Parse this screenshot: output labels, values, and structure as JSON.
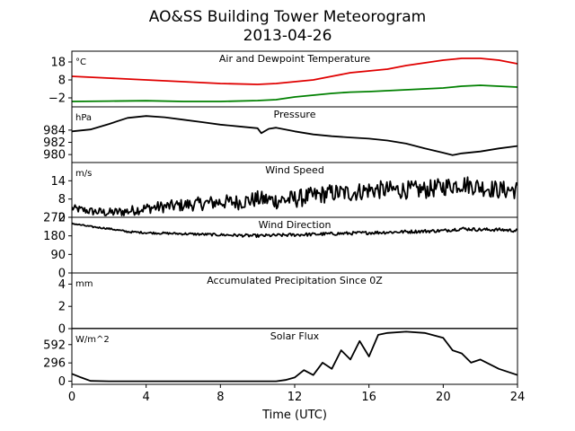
{
  "figure": {
    "title": "AO&SS Building Tower Meteorogram",
    "subtitle": "2013-04-26"
  },
  "chart_data": [
    {
      "type": "line",
      "title": "Air and Dewpoint Temperature",
      "unit_label": "°C",
      "xlabel": "Time (UTC)",
      "xlim": [
        0,
        24
      ],
      "ylim": [
        -7,
        24
      ],
      "yticks": [
        -2,
        8,
        18
      ],
      "ytick_labels": [
        "−2",
        "8",
        "18"
      ],
      "series": [
        {
          "color": "#e00000",
          "x": [
            0,
            2,
            4,
            6,
            8,
            10,
            11,
            12,
            13,
            14,
            15,
            16,
            17,
            18,
            19,
            20,
            21,
            22,
            23,
            24
          ],
          "y": [
            10,
            9,
            8,
            7,
            6,
            5.5,
            6,
            7,
            8,
            10,
            12,
            13,
            14,
            16,
            17.5,
            19,
            20,
            20,
            19,
            17
          ]
        },
        {
          "color": "#008000",
          "x": [
            0,
            2,
            4,
            6,
            8,
            10,
            11,
            12,
            13,
            14,
            15,
            16,
            17,
            18,
            19,
            20,
            21,
            22,
            23,
            24
          ],
          "y": [
            -4,
            -3.8,
            -3.6,
            -4,
            -4,
            -3.5,
            -3,
            -1.5,
            -0.5,
            0.5,
            1.2,
            1.5,
            2,
            2.5,
            3,
            3.5,
            4.5,
            5,
            4.5,
            4
          ]
        }
      ]
    },
    {
      "type": "line",
      "title": "Pressure",
      "unit_label": "hPa",
      "xlim": [
        0,
        24
      ],
      "ylim": [
        978.7,
        987.8
      ],
      "yticks": [
        980,
        982,
        984
      ],
      "ytick_labels": [
        "980",
        "982",
        "984"
      ],
      "series": [
        {
          "color": "#000000",
          "x": [
            0,
            1,
            2,
            3,
            4,
            5,
            6,
            7,
            8,
            9,
            10,
            10.2,
            10.6,
            11,
            12,
            13,
            14,
            15,
            16,
            17,
            18,
            19,
            20,
            20.5,
            21,
            22,
            23,
            24
          ],
          "y": [
            983.8,
            984.1,
            985,
            986,
            986.3,
            986.1,
            985.7,
            985.3,
            984.9,
            984.6,
            984.3,
            983.5,
            984.2,
            984.4,
            983.8,
            983.3,
            983,
            982.8,
            982.6,
            982.3,
            981.8,
            981,
            980.3,
            979.9,
            980.2,
            980.5,
            981,
            981.4
          ]
        }
      ]
    },
    {
      "type": "line",
      "title": "Wind Speed",
      "unit_label": "m/s",
      "xlim": [
        0,
        24
      ],
      "ylim": [
        2,
        20
      ],
      "yticks": [
        2,
        8,
        14
      ],
      "ytick_labels": [
        "2",
        "8",
        "14"
      ],
      "series": [
        {
          "color": "#000000",
          "x": [
            0,
            1,
            2,
            3,
            4,
            5,
            6,
            7,
            8,
            9,
            10,
            11,
            12,
            13,
            14,
            15,
            16,
            17,
            18,
            19,
            20,
            21,
            22,
            23,
            24
          ],
          "y": [
            5,
            4,
            3.5,
            4,
            5,
            5.5,
            6,
            6.5,
            7,
            7,
            8,
            7.5,
            8,
            9,
            10,
            10,
            11,
            11,
            11,
            11,
            12,
            13,
            12,
            11,
            11
          ],
          "noise_amplitude": 3
        }
      ]
    },
    {
      "type": "line",
      "title": "Wind Direction",
      "xlim": [
        0,
        24
      ],
      "ylim": [
        0,
        270
      ],
      "yticks": [
        0,
        90,
        180,
        270
      ],
      "ytick_labels": [
        "0",
        "90",
        "180",
        "270"
      ],
      "series": [
        {
          "color": "#000000",
          "x": [
            0,
            1,
            2,
            3,
            4,
            6,
            8,
            10,
            12,
            14,
            16,
            18,
            20,
            21,
            22,
            23,
            24
          ],
          "y": [
            240,
            225,
            215,
            200,
            195,
            190,
            185,
            180,
            185,
            190,
            195,
            200,
            205,
            215,
            210,
            210,
            205
          ],
          "noise_amplitude": 8
        }
      ]
    },
    {
      "type": "line",
      "title": "Accumulated Precipitation Since 0Z",
      "unit_label": "mm",
      "xlim": [
        0,
        24
      ],
      "ylim": [
        0,
        5
      ],
      "yticks": [
        0,
        2,
        4
      ],
      "ytick_labels": [
        "0",
        "2",
        "4"
      ],
      "series": [
        {
          "color": "#000000",
          "x": [
            0,
            24
          ],
          "y": [
            0,
            0
          ]
        }
      ]
    },
    {
      "type": "line",
      "title": "Solar Flux",
      "unit_label": "W/m^2",
      "xlim": [
        0,
        24
      ],
      "ylim": [
        -50,
        850
      ],
      "yticks": [
        0,
        296,
        592
      ],
      "ytick_labels": [
        "0",
        "296",
        "592"
      ],
      "series": [
        {
          "color": "#000000",
          "x": [
            0,
            0.5,
            1,
            2,
            4,
            6,
            8,
            10,
            11,
            11.5,
            12,
            12.5,
            13,
            13.5,
            14,
            14.5,
            15,
            15.5,
            16,
            16.5,
            17,
            18,
            19,
            20,
            20.5,
            21,
            21.5,
            22,
            23,
            24
          ],
          "y": [
            120,
            60,
            5,
            0,
            0,
            0,
            0,
            0,
            0,
            20,
            60,
            180,
            100,
            300,
            200,
            500,
            350,
            650,
            400,
            750,
            780,
            800,
            780,
            700,
            500,
            450,
            300,
            350,
            200,
            100
          ]
        }
      ]
    }
  ]
}
